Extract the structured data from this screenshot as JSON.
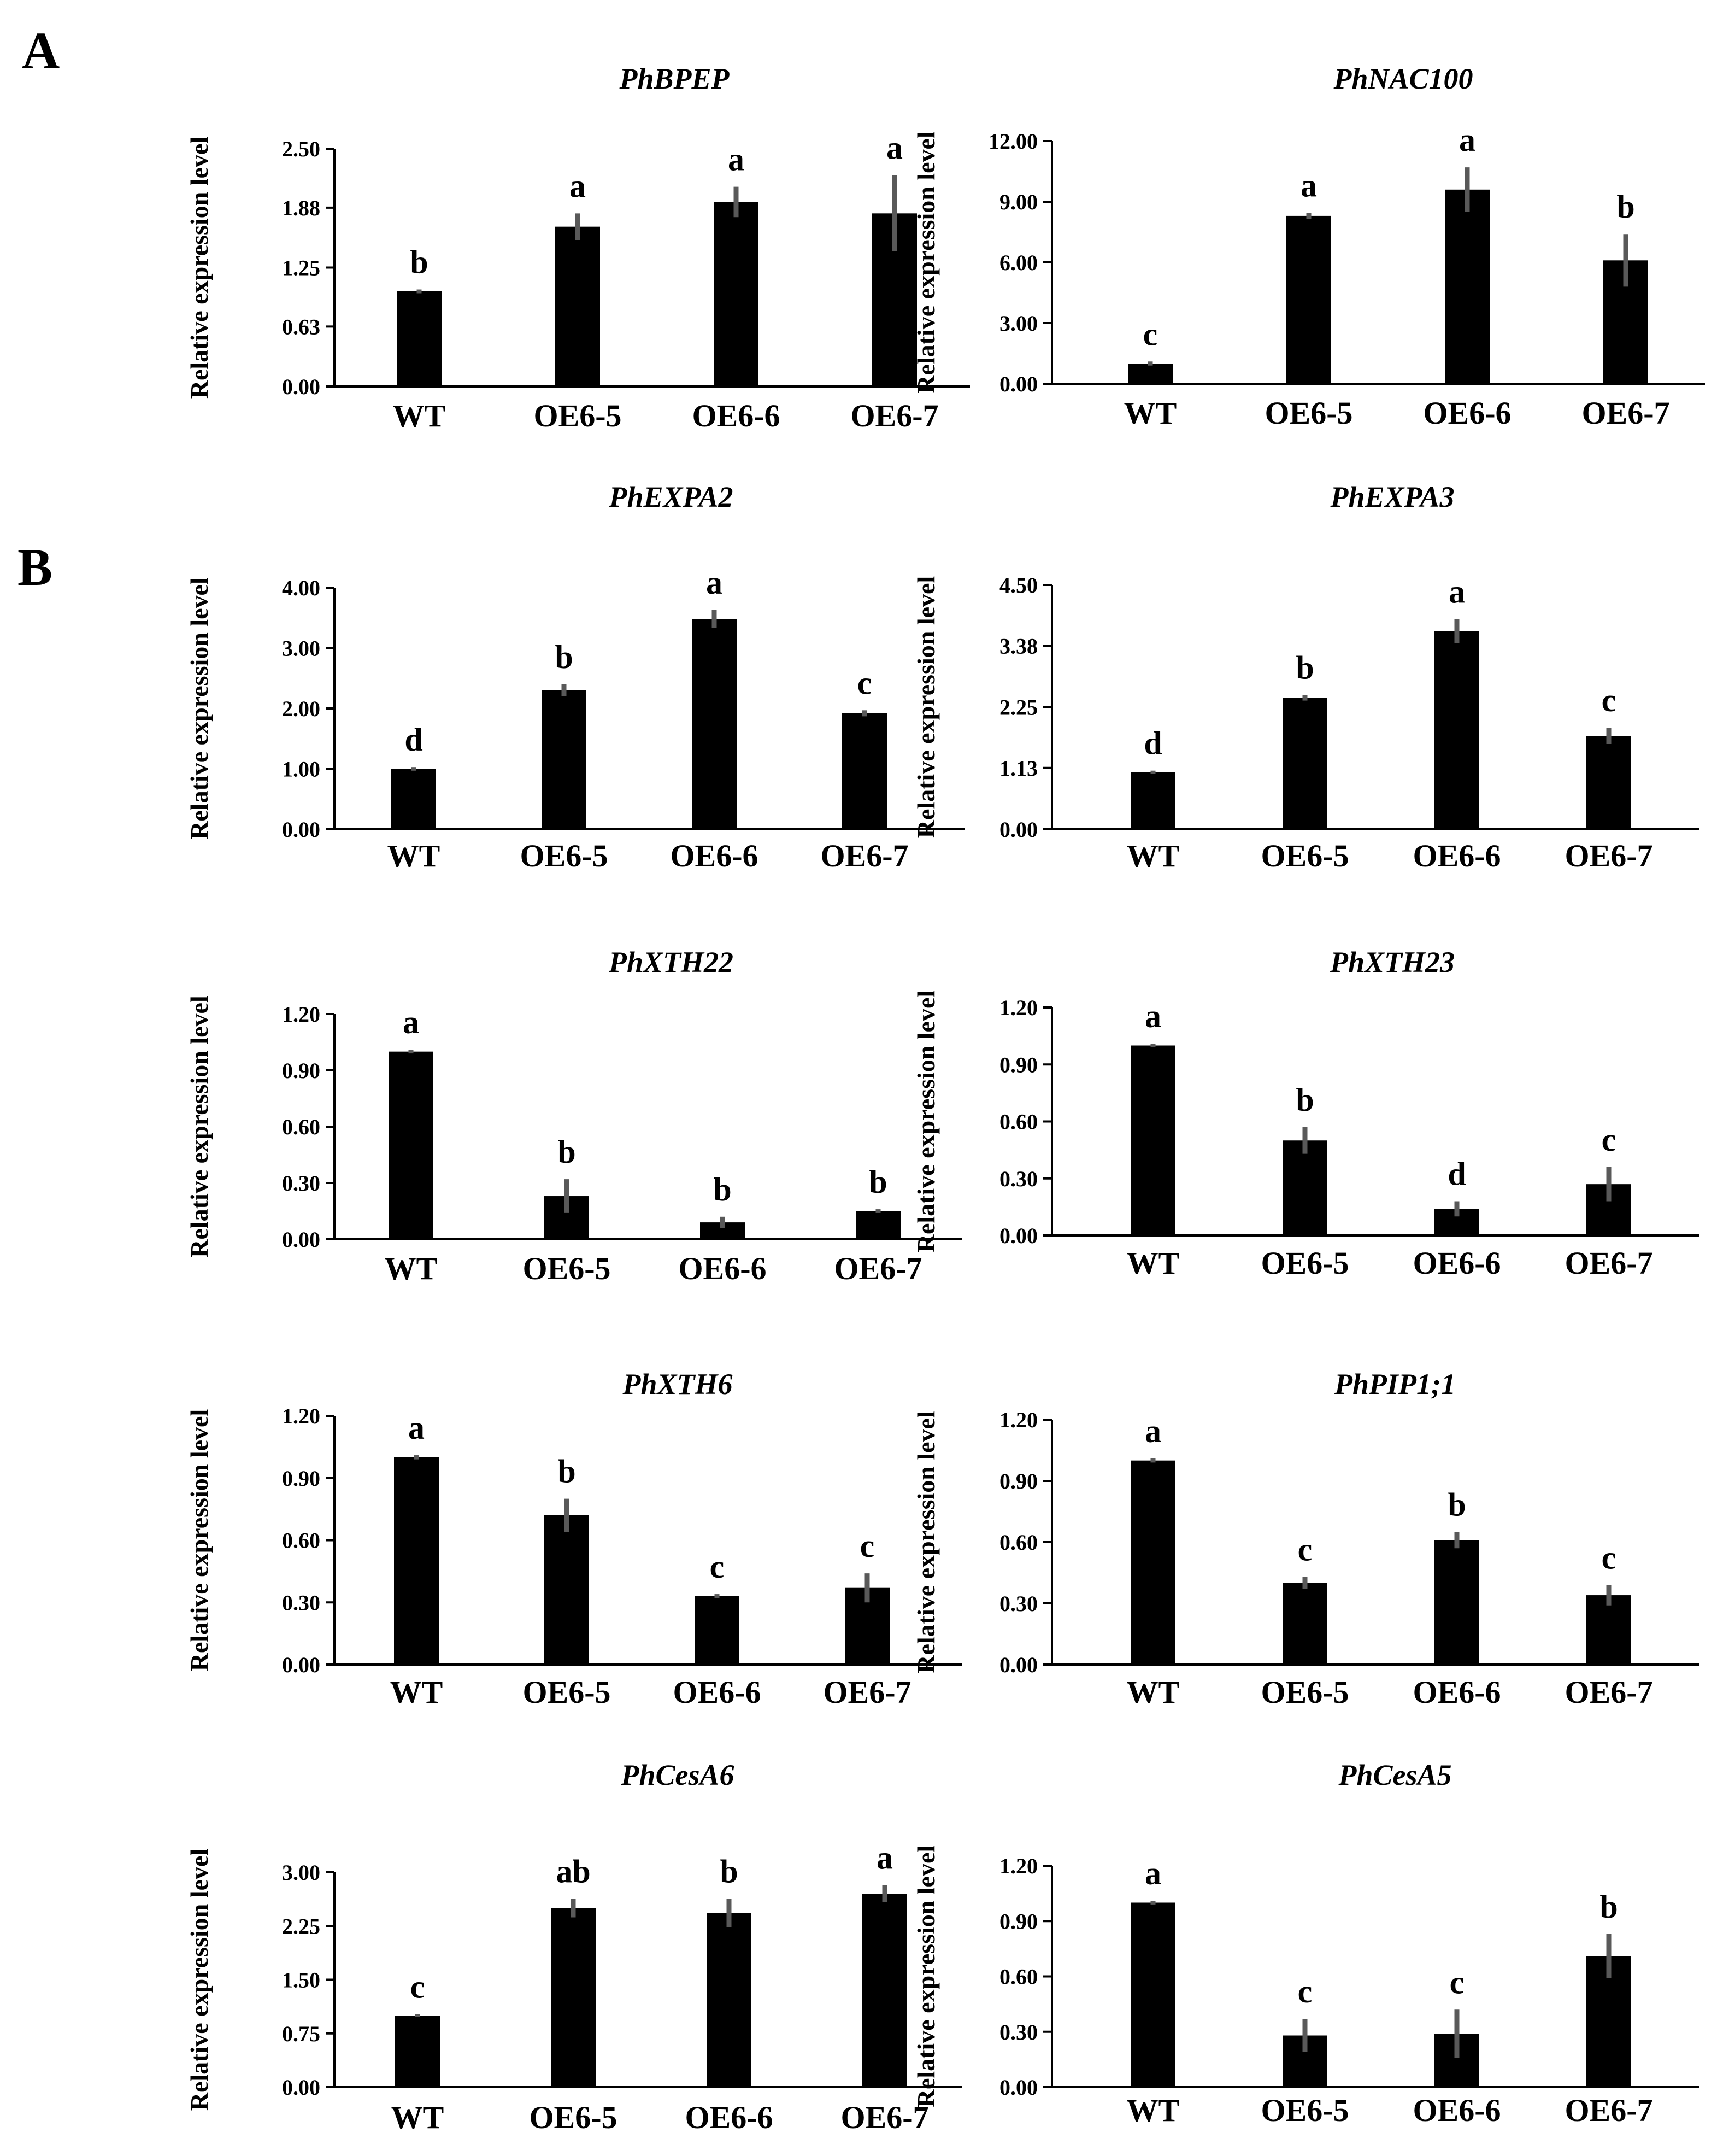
{
  "panels": [
    "A",
    "B"
  ],
  "ylabel": "Relative expression level",
  "chart_data": [
    {
      "type": "bar",
      "title": "PhBPEP",
      "ylabel": "Relative expression level",
      "categories": [
        "WT",
        "OE6-5",
        "OE6-6",
        "OE6-7"
      ],
      "values": [
        1.0,
        1.68,
        1.94,
        1.82
      ],
      "errors": [
        0.02,
        0.14,
        0.16,
        0.4
      ],
      "letters": [
        "b",
        "a",
        "a",
        "a"
      ],
      "yticks": [
        "0.00",
        "0.63",
        "1.25",
        "1.88",
        "2.50"
      ],
      "ylim": [
        0,
        2.5
      ]
    },
    {
      "type": "bar",
      "title": "PhNAC100",
      "ylabel": "Relative expression level",
      "categories": [
        "WT",
        "OE6-5",
        "OE6-6",
        "OE6-7"
      ],
      "values": [
        1.0,
        8.3,
        9.6,
        6.1
      ],
      "errors": [
        0.1,
        0.15,
        1.1,
        1.3
      ],
      "letters": [
        "c",
        "a",
        "a",
        "b"
      ],
      "yticks": [
        "0.00",
        "3.00",
        "6.00",
        "9.00",
        "12.00"
      ],
      "ylim": [
        0,
        12
      ]
    },
    {
      "type": "bar",
      "title": "PhEXPA2",
      "ylabel": "Relative expression level",
      "categories": [
        "WT",
        "OE6-5",
        "OE6-6",
        "OE6-7"
      ],
      "values": [
        1.0,
        2.3,
        3.48,
        1.92
      ],
      "errors": [
        0.03,
        0.1,
        0.15,
        0.05
      ],
      "letters": [
        "d",
        "b",
        "a",
        "c"
      ],
      "yticks": [
        "0.00",
        "1.00",
        "2.00",
        "3.00",
        "4.00"
      ],
      "ylim": [
        0,
        4
      ]
    },
    {
      "type": "bar",
      "title": "PhEXPA3",
      "ylabel": "Relative expression level",
      "categories": [
        "WT",
        "OE6-5",
        "OE6-6",
        "OE6-7"
      ],
      "values": [
        1.05,
        2.42,
        3.65,
        1.72
      ],
      "errors": [
        0.03,
        0.05,
        0.22,
        0.15
      ],
      "letters": [
        "d",
        "b",
        "a",
        "c"
      ],
      "yticks": [
        "0.00",
        "1.13",
        "2.25",
        "3.38",
        "4.50"
      ],
      "ylim": [
        0,
        4.5
      ]
    },
    {
      "type": "bar",
      "title": "PhXTH22",
      "ylabel": "Relative expression level",
      "categories": [
        "WT",
        "OE6-5",
        "OE6-6",
        "OE6-7"
      ],
      "values": [
        1.0,
        0.23,
        0.09,
        0.15
      ],
      "errors": [
        0.01,
        0.09,
        0.03,
        0.01
      ],
      "letters": [
        "a",
        "b",
        "b",
        "b"
      ],
      "yticks": [
        "0.00",
        "0.30",
        "0.60",
        "0.90",
        "1.20"
      ],
      "ylim": [
        0,
        1.2
      ]
    },
    {
      "type": "bar",
      "title": "PhXTH23",
      "ylabel": "Relative expression level",
      "categories": [
        "WT",
        "OE6-5",
        "OE6-6",
        "OE6-7"
      ],
      "values": [
        1.0,
        0.5,
        0.14,
        0.27
      ],
      "errors": [
        0.01,
        0.07,
        0.04,
        0.09
      ],
      "letters": [
        "a",
        "b",
        "d",
        "c"
      ],
      "yticks": [
        "0.00",
        "0.30",
        "0.60",
        "0.90",
        "1.20"
      ],
      "ylim": [
        0,
        1.2
      ]
    },
    {
      "type": "bar",
      "title": "PhXTH6",
      "ylabel": "Relative expression level",
      "categories": [
        "WT",
        "OE6-5",
        "OE6-6",
        "OE6-7"
      ],
      "values": [
        1.0,
        0.72,
        0.33,
        0.37
      ],
      "errors": [
        0.01,
        0.08,
        0.01,
        0.07
      ],
      "letters": [
        "a",
        "b",
        "c",
        "c"
      ],
      "yticks": [
        "0.00",
        "0.30",
        "0.60",
        "0.90",
        "1.20"
      ],
      "ylim": [
        0,
        1.2
      ]
    },
    {
      "type": "bar",
      "title": "PhPIP1;1",
      "ylabel": "Relative expression level",
      "categories": [
        "WT",
        "OE6-5",
        "OE6-6",
        "OE6-7"
      ],
      "values": [
        1.0,
        0.4,
        0.61,
        0.34
      ],
      "errors": [
        0.01,
        0.03,
        0.04,
        0.05
      ],
      "letters": [
        "a",
        "c",
        "b",
        "c"
      ],
      "yticks": [
        "0.00",
        "0.30",
        "0.60",
        "0.90",
        "1.20"
      ],
      "ylim": [
        0,
        1.2
      ]
    },
    {
      "type": "bar",
      "title": "PhCesA6",
      "ylabel": "Relative expression level",
      "categories": [
        "WT",
        "OE6-5",
        "OE6-6",
        "OE6-7"
      ],
      "values": [
        1.0,
        2.5,
        2.43,
        2.7
      ],
      "errors": [
        0.02,
        0.13,
        0.2,
        0.12
      ],
      "letters": [
        "c",
        "ab",
        "b",
        "a"
      ],
      "yticks": [
        "0.00",
        "0.75",
        "1.50",
        "2.25",
        "3.00"
      ],
      "ylim": [
        0,
        3
      ]
    },
    {
      "type": "bar",
      "title": "PhCesA5",
      "ylabel": "Relative expression level",
      "categories": [
        "WT",
        "OE6-5",
        "OE6-6",
        "OE6-7"
      ],
      "values": [
        1.0,
        0.28,
        0.29,
        0.71
      ],
      "errors": [
        0.01,
        0.09,
        0.13,
        0.12
      ],
      "letters": [
        "a",
        "c",
        "c",
        "b"
      ],
      "yticks": [
        "0.00",
        "0.30",
        "0.60",
        "0.90",
        "1.20"
      ],
      "ylim": [
        0,
        1.2
      ]
    }
  ]
}
